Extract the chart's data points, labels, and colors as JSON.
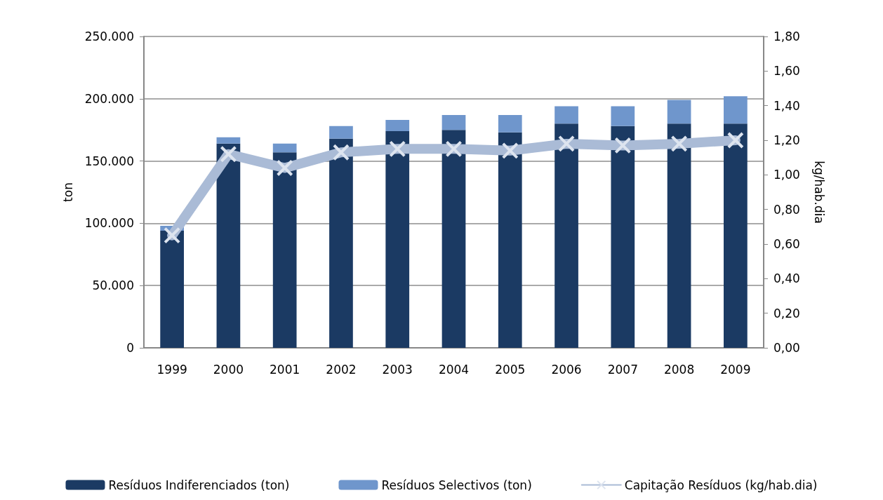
{
  "chart_data": {
    "type": "bar",
    "stacked": true,
    "ylabel": "ton",
    "y2label": "kg/hab.dia",
    "categories": [
      "1999",
      "2000",
      "2001",
      "2002",
      "2003",
      "2004",
      "2005",
      "2006",
      "2007",
      "2008",
      "2009"
    ],
    "series": [
      {
        "name": "Resíduos Indiferenciados (ton)",
        "color": "#1b3a63",
        "values": [
          94000,
          164000,
          157000,
          168000,
          174000,
          175000,
          173000,
          180000,
          178000,
          180000,
          180000
        ]
      },
      {
        "name": "Resíduos Selectivos (ton)",
        "color": "#6f96cc",
        "values": [
          4000,
          5000,
          7000,
          10000,
          9000,
          12000,
          14000,
          14000,
          16000,
          19000,
          22000
        ]
      },
      {
        "name": "Capitação Resíduos (kg/hab.dia)",
        "type": "line",
        "axis": "y2",
        "color": "#aabbd6",
        "marker": "cross",
        "line_style": "solid",
        "values": [
          0.65,
          1.12,
          1.04,
          1.13,
          1.15,
          1.15,
          1.14,
          1.18,
          1.17,
          1.18,
          1.2
        ]
      }
    ],
    "ylim": [
      0,
      250000
    ],
    "yticks": [
      {
        "value": 0,
        "label": "0"
      },
      {
        "value": 50000,
        "label": "50.000"
      },
      {
        "value": 100000,
        "label": "100.000"
      },
      {
        "value": 150000,
        "label": "150.000"
      },
      {
        "value": 200000,
        "label": "200.000"
      },
      {
        "value": 250000,
        "label": "250.000"
      }
    ],
    "y2lim": [
      0,
      1.8
    ],
    "y2ticks": [
      {
        "value": 0,
        "label": "0,00"
      },
      {
        "value": 0.2,
        "label": "0,20"
      },
      {
        "value": 0.4,
        "label": "0,40"
      },
      {
        "value": 0.6,
        "label": "0,60"
      },
      {
        "value": 0.8,
        "label": "0,80"
      },
      {
        "value": 1,
        "label": "1,00"
      },
      {
        "value": 1.2,
        "label": "1,20"
      },
      {
        "value": 1.4,
        "label": "1,40"
      },
      {
        "value": 1.6,
        "label": "1,60"
      },
      {
        "value": 1.8,
        "label": "1,80"
      }
    ],
    "grid": "y",
    "legend": "bottom"
  }
}
